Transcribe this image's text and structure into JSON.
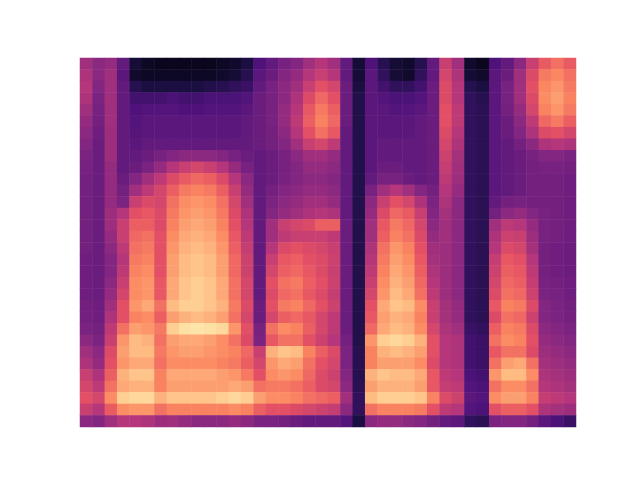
{
  "chart_data": {
    "type": "heatmap",
    "tick_labels": false,
    "zlim": [
      0,
      100
    ],
    "cells": [
      [
        45,
        40,
        42,
        30,
        10,
        6,
        5,
        5,
        5,
        5,
        5,
        6,
        8,
        12,
        25,
        30,
        35,
        38,
        45,
        50,
        45,
        30,
        10,
        25,
        15,
        10,
        8,
        15,
        30,
        55,
        45,
        8,
        5,
        25,
        30,
        40,
        55,
        65,
        70,
        65
      ],
      [
        48,
        40,
        45,
        28,
        8,
        6,
        6,
        6,
        6,
        6,
        6,
        8,
        10,
        15,
        28,
        32,
        38,
        42,
        50,
        55,
        50,
        30,
        10,
        28,
        18,
        10,
        8,
        18,
        30,
        58,
        48,
        10,
        8,
        28,
        32,
        45,
        60,
        72,
        75,
        70
      ],
      [
        50,
        38,
        45,
        30,
        15,
        12,
        12,
        12,
        12,
        12,
        14,
        15,
        18,
        20,
        30,
        35,
        40,
        45,
        55,
        62,
        58,
        32,
        12,
        28,
        22,
        18,
        18,
        22,
        32,
        60,
        50,
        15,
        12,
        28,
        35,
        45,
        62,
        75,
        78,
        72
      ],
      [
        48,
        36,
        45,
        30,
        22,
        22,
        22,
        24,
        22,
        22,
        24,
        24,
        24,
        26,
        32,
        35,
        40,
        48,
        60,
        68,
        62,
        32,
        14,
        28,
        26,
        24,
        24,
        26,
        32,
        60,
        50,
        18,
        15,
        28,
        35,
        45,
        60,
        76,
        80,
        74
      ],
      [
        45,
        35,
        45,
        30,
        25,
        26,
        26,
        26,
        25,
        25,
        26,
        26,
        26,
        28,
        32,
        35,
        42,
        50,
        64,
        72,
        66,
        32,
        14,
        28,
        28,
        26,
        26,
        28,
        32,
        62,
        52,
        18,
        16,
        28,
        34,
        42,
        58,
        74,
        78,
        72
      ],
      [
        42,
        34,
        45,
        30,
        26,
        28,
        28,
        28,
        28,
        28,
        28,
        28,
        28,
        30,
        32,
        35,
        42,
        52,
        66,
        74,
        68,
        32,
        14,
        28,
        28,
        28,
        28,
        30,
        32,
        62,
        52,
        18,
        16,
        28,
        32,
        40,
        52,
        68,
        72,
        66
      ],
      [
        40,
        33,
        44,
        30,
        27,
        28,
        28,
        28,
        28,
        28,
        28,
        28,
        28,
        30,
        32,
        34,
        40,
        50,
        62,
        70,
        64,
        30,
        14,
        28,
        28,
        28,
        28,
        30,
        32,
        60,
        50,
        18,
        16,
        28,
        32,
        38,
        48,
        60,
        62,
        58
      ],
      [
        38,
        32,
        44,
        30,
        28,
        30,
        30,
        30,
        30,
        30,
        30,
        30,
        30,
        30,
        32,
        34,
        38,
        45,
        55,
        58,
        52,
        30,
        14,
        28,
        30,
        30,
        30,
        30,
        32,
        58,
        48,
        18,
        16,
        28,
        30,
        34,
        40,
        48,
        50,
        48
      ],
      [
        36,
        32,
        44,
        30,
        30,
        32,
        35,
        38,
        40,
        40,
        40,
        38,
        35,
        32,
        30,
        32,
        35,
        40,
        45,
        45,
        42,
        30,
        14,
        28,
        30,
        30,
        30,
        30,
        32,
        56,
        46,
        18,
        16,
        28,
        30,
        32,
        35,
        38,
        38,
        36
      ],
      [
        35,
        32,
        42,
        30,
        32,
        36,
        42,
        50,
        55,
        58,
        55,
        50,
        42,
        35,
        30,
        32,
        35,
        38,
        42,
        42,
        40,
        30,
        14,
        28,
        32,
        32,
        30,
        30,
        32,
        54,
        45,
        18,
        16,
        28,
        30,
        32,
        34,
        35,
        35,
        34
      ],
      [
        34,
        32,
        42,
        32,
        38,
        45,
        52,
        60,
        65,
        68,
        66,
        60,
        50,
        40,
        30,
        32,
        35,
        38,
        40,
        40,
        38,
        30,
        14,
        30,
        35,
        35,
        32,
        30,
        32,
        52,
        44,
        18,
        16,
        28,
        30,
        32,
        34,
        34,
        34,
        33
      ],
      [
        34,
        32,
        42,
        34,
        45,
        52,
        58,
        66,
        72,
        74,
        72,
        66,
        55,
        42,
        30,
        34,
        38,
        40,
        42,
        42,
        40,
        30,
        14,
        35,
        45,
        50,
        45,
        38,
        34,
        50,
        42,
        18,
        16,
        28,
        30,
        32,
        34,
        34,
        34,
        33
      ],
      [
        34,
        32,
        42,
        36,
        55,
        60,
        58,
        70,
        76,
        78,
        76,
        70,
        58,
        45,
        30,
        36,
        40,
        42,
        45,
        45,
        42,
        30,
        14,
        40,
        55,
        62,
        58,
        48,
        36,
        48,
        40,
        18,
        16,
        30,
        34,
        35,
        34,
        34,
        34,
        33
      ],
      [
        34,
        32,
        44,
        50,
        62,
        64,
        60,
        72,
        78,
        80,
        78,
        72,
        60,
        48,
        30,
        38,
        42,
        45,
        48,
        50,
        48,
        30,
        14,
        42,
        60,
        68,
        65,
        55,
        38,
        46,
        40,
        18,
        16,
        34,
        40,
        42,
        38,
        35,
        34,
        33
      ],
      [
        34,
        32,
        44,
        55,
        66,
        66,
        60,
        74,
        80,
        82,
        80,
        74,
        62,
        50,
        30,
        45,
        55,
        58,
        60,
        66,
        66,
        32,
        14,
        45,
        64,
        72,
        68,
        58,
        40,
        45,
        40,
        18,
        16,
        45,
        52,
        50,
        42,
        35,
        34,
        33
      ],
      [
        34,
        32,
        42,
        55,
        68,
        70,
        62,
        76,
        82,
        84,
        82,
        76,
        64,
        52,
        30,
        45,
        52,
        55,
        55,
        55,
        52,
        32,
        14,
        45,
        66,
        74,
        70,
        60,
        42,
        45,
        40,
        18,
        16,
        48,
        56,
        55,
        44,
        35,
        34,
        33
      ],
      [
        34,
        32,
        40,
        52,
        70,
        72,
        62,
        78,
        84,
        86,
        84,
        78,
        66,
        54,
        30,
        50,
        60,
        62,
        60,
        58,
        55,
        32,
        14,
        48,
        70,
        78,
        74,
        62,
        45,
        44,
        40,
        18,
        16,
        50,
        60,
        58,
        46,
        34,
        33,
        32
      ],
      [
        33,
        32,
        38,
        50,
        72,
        74,
        62,
        80,
        86,
        88,
        86,
        80,
        68,
        56,
        30,
        55,
        64,
        66,
        62,
        60,
        56,
        32,
        14,
        50,
        72,
        80,
        76,
        64,
        46,
        44,
        40,
        18,
        16,
        54,
        64,
        62,
        50,
        34,
        33,
        32
      ],
      [
        33,
        32,
        38,
        52,
        74,
        76,
        62,
        80,
        86,
        88,
        86,
        80,
        68,
        56,
        30,
        58,
        66,
        68,
        64,
        60,
        55,
        32,
        14,
        52,
        74,
        82,
        78,
        66,
        48,
        44,
        40,
        18,
        16,
        56,
        66,
        64,
        52,
        34,
        33,
        32
      ],
      [
        33,
        32,
        40,
        55,
        76,
        78,
        64,
        82,
        88,
        90,
        88,
        82,
        70,
        58,
        30,
        62,
        70,
        72,
        66,
        62,
        56,
        32,
        14,
        55,
        76,
        84,
        80,
        68,
        50,
        44,
        40,
        18,
        16,
        58,
        68,
        66,
        54,
        35,
        34,
        33
      ],
      [
        33,
        32,
        42,
        58,
        76,
        78,
        64,
        82,
        88,
        90,
        88,
        82,
        70,
        58,
        30,
        60,
        68,
        70,
        64,
        60,
        54,
        32,
        14,
        58,
        78,
        86,
        82,
        70,
        52,
        44,
        40,
        18,
        16,
        60,
        70,
        68,
        56,
        36,
        35,
        33
      ],
      [
        34,
        33,
        45,
        62,
        78,
        82,
        70,
        86,
        90,
        90,
        88,
        84,
        72,
        60,
        32,
        62,
        72,
        74,
        68,
        62,
        56,
        32,
        14,
        62,
        82,
        88,
        86,
        76,
        55,
        46,
        42,
        18,
        16,
        64,
        74,
        72,
        60,
        38,
        36,
        34
      ],
      [
        34,
        33,
        48,
        62,
        74,
        76,
        66,
        80,
        84,
        86,
        84,
        80,
        70,
        58,
        32,
        58,
        66,
        68,
        64,
        58,
        52,
        32,
        14,
        64,
        80,
        84,
        82,
        74,
        55,
        46,
        42,
        18,
        16,
        60,
        70,
        68,
        56,
        38,
        36,
        34
      ],
      [
        36,
        34,
        52,
        70,
        80,
        78,
        72,
        90,
        94,
        95,
        94,
        92,
        78,
        62,
        35,
        70,
        76,
        74,
        66,
        58,
        52,
        32,
        14,
        68,
        82,
        86,
        84,
        76,
        58,
        48,
        45,
        20,
        18,
        66,
        74,
        72,
        60,
        40,
        38,
        36
      ],
      [
        40,
        36,
        55,
        78,
        86,
        84,
        70,
        80,
        82,
        82,
        80,
        76,
        70,
        60,
        36,
        64,
        70,
        70,
        62,
        56,
        50,
        34,
        14,
        78,
        90,
        92,
        90,
        84,
        62,
        50,
        48,
        22,
        20,
        70,
        76,
        74,
        62,
        42,
        40,
        38
      ],
      [
        45,
        40,
        60,
        80,
        86,
        86,
        72,
        78,
        80,
        80,
        78,
        76,
        74,
        68,
        55,
        84,
        88,
        86,
        74,
        66,
        60,
        36,
        15,
        74,
        84,
        86,
        84,
        80,
        62,
        50,
        48,
        22,
        20,
        64,
        70,
        70,
        60,
        44,
        42,
        40
      ],
      [
        48,
        42,
        62,
        78,
        82,
        82,
        70,
        76,
        76,
        76,
        76,
        74,
        72,
        66,
        58,
        78,
        82,
        80,
        70,
        62,
        58,
        36,
        15,
        74,
        80,
        80,
        80,
        76,
        60,
        50,
        48,
        22,
        20,
        70,
        80,
        82,
        70,
        46,
        44,
        42
      ],
      [
        55,
        48,
        66,
        84,
        88,
        88,
        74,
        82,
        82,
        82,
        82,
        80,
        78,
        72,
        62,
        76,
        78,
        76,
        68,
        60,
        56,
        38,
        15,
        84,
        88,
        86,
        86,
        82,
        64,
        52,
        50,
        24,
        22,
        78,
        86,
        86,
        76,
        48,
        46,
        44
      ],
      [
        58,
        52,
        70,
        82,
        84,
        84,
        74,
        80,
        80,
        80,
        80,
        80,
        82,
        80,
        70,
        72,
        72,
        70,
        66,
        60,
        58,
        40,
        16,
        80,
        84,
        84,
        84,
        80,
        64,
        54,
        52,
        26,
        24,
        70,
        76,
        76,
        70,
        50,
        48,
        46
      ],
      [
        62,
        58,
        76,
        90,
        92,
        92,
        84,
        88,
        88,
        88,
        88,
        90,
        92,
        90,
        80,
        76,
        76,
        74,
        70,
        68,
        66,
        45,
        18,
        86,
        90,
        90,
        90,
        88,
        74,
        60,
        56,
        28,
        26,
        76,
        80,
        80,
        74,
        54,
        52,
        50
      ],
      [
        55,
        50,
        65,
        76,
        78,
        78,
        70,
        74,
        74,
        74,
        74,
        74,
        76,
        74,
        66,
        62,
        62,
        60,
        58,
        56,
        54,
        40,
        18,
        70,
        74,
        74,
        74,
        72,
        62,
        52,
        50,
        26,
        24,
        62,
        66,
        66,
        62,
        48,
        46,
        44
      ],
      [
        40,
        38,
        45,
        50,
        50,
        48,
        44,
        45,
        42,
        40,
        40,
        40,
        42,
        40,
        36,
        36,
        34,
        32,
        30,
        30,
        30,
        26,
        12,
        40,
        42,
        42,
        40,
        38,
        34,
        30,
        28,
        18,
        16,
        36,
        38,
        38,
        34,
        28,
        24,
        20
      ]
    ]
  }
}
